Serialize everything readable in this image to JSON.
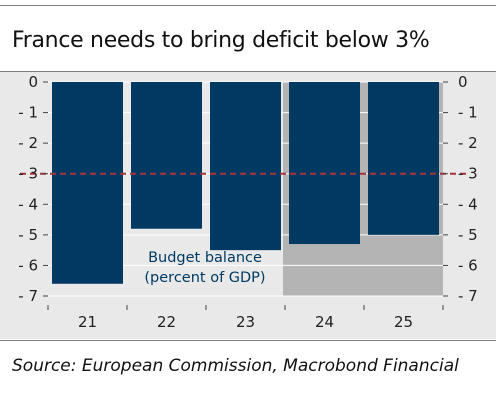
{
  "title": "France needs to bring deficit below 3%",
  "source": "Source: European Commission, Macrobond Financial",
  "chart_data": {
    "type": "bar",
    "categories": [
      "21",
      "22",
      "23",
      "24",
      "25"
    ],
    "series": [
      {
        "name": "Budget balance (percent of GDP)",
        "values": [
          -6.6,
          -4.8,
          -5.5,
          -5.3,
          -5.0
        ]
      }
    ],
    "forecast_from_category": "24",
    "reference_line": {
      "value": -3
    },
    "annotation_lines": [
      "Budget balance",
      "(percent of GDP)"
    ],
    "ylim": [
      -7,
      0
    ],
    "yticks": [
      0,
      -1,
      -2,
      -3,
      -4,
      -5,
      -6,
      -7
    ],
    "ytick_labels": [
      "0",
      "- 1",
      "- 2",
      "- 3",
      "- 4",
      "- 5",
      "- 6",
      "- 7"
    ],
    "xlabel": "",
    "ylabel": "",
    "grid": true,
    "colors": {
      "bar": "#003a63",
      "forecast_shade": "#b4b4b4",
      "reference_line": "#a8323a",
      "grid": "#ffffff",
      "annotation": "#003a63",
      "panel": "#e9e9e9"
    }
  }
}
